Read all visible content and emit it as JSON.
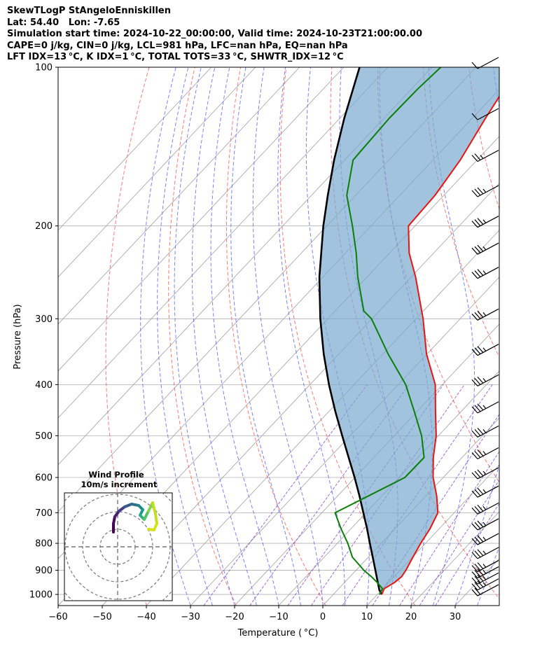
{
  "title_lines": [
    "SkewTLogP StAngeloEnniskillen",
    "Lat: 54.40   Lon: -7.65",
    "Simulation start time: 2024-10-22_00:00:00, Valid time: 2024-10-23T21:00:00.00",
    "CAPE=0 j/kg, CIN=0 j/kg, LCL=981 hPa, LFC=nan hPa, EQ=nan hPa",
    "LFT IDX=13 °C, K IDX=1 °C, TOTAL TOTS=33 °C, SHWTR_IDX=12 °C"
  ],
  "colors": {
    "temperature": "#e8140f",
    "dewpoint": "#0a7f0a",
    "parcel": "#000000",
    "cape_fill": "#7aa9cf",
    "dry_adiabat": "#f26464",
    "moist_adiabat": "#5a64f0",
    "mixing_ratio": "#8c46c8",
    "isotherm": "#a0a0a0"
  },
  "chart_data": {
    "type": "line",
    "subtype": "skew-t log-p",
    "xlabel": "Temperature ( °C)",
    "ylabel": "Pressure (hPa)",
    "xlim": [
      -60,
      40
    ],
    "ylim": [
      1050,
      100
    ],
    "y_scale": "log",
    "x_ticks": [
      -60,
      -50,
      -40,
      -30,
      -20,
      -10,
      0,
      10,
      20,
      30
    ],
    "x_tick_labels": [
      "−60",
      "−50",
      "−40",
      "−30",
      "−20",
      "−10",
      "0",
      "10",
      "20",
      "30"
    ],
    "y_ticks": [
      1000,
      900,
      800,
      700,
      600,
      500,
      400,
      300,
      200,
      100
    ],
    "y_tick_labels": [
      "1000",
      "900",
      "800",
      "700",
      "600",
      "500",
      "400",
      "300",
      "200",
      "100"
    ],
    "grid": true,
    "series": [
      {
        "role": "temperature",
        "pressure": [
          1000,
          975,
          950,
          925,
          900,
          850,
          800,
          750,
          700,
          650,
          600,
          550,
          500,
          450,
          400,
          350,
          300,
          250,
          225,
          200,
          175,
          150,
          125,
          110,
          100
        ],
        "temperature": [
          11.0,
          10.3,
          11.3,
          11.7,
          11.3,
          10.1,
          8.9,
          7.9,
          6.3,
          2.4,
          -2.3,
          -6.5,
          -10.5,
          -15.8,
          -21.6,
          -30.1,
          -38.4,
          -49.0,
          -55.6,
          -61.5,
          -62.0,
          -63.8,
          -67.0,
          -69.0,
          -69.0
        ]
      },
      {
        "role": "dewpoint",
        "pressure": [
          1000,
          975,
          950,
          925,
          900,
          850,
          800,
          750,
          700,
          650,
          600,
          550,
          500,
          450,
          400,
          350,
          300,
          290,
          250,
          225,
          200,
          175,
          150,
          125,
          110,
          100
        ],
        "dewpoint": [
          10.5,
          9.9,
          7.5,
          4.8,
          1.8,
          -3.6,
          -7.6,
          -12.3,
          -17.0,
          -13.0,
          -8.7,
          -8.6,
          -13.8,
          -20.6,
          -28.3,
          -38.8,
          -50.1,
          -53.5,
          -62.1,
          -67.6,
          -74.2,
          -82.0,
          -88.1,
          -88.8,
          -88.6,
          -88.0
        ]
      },
      {
        "role": "parcel",
        "pressure": [
          1000,
          981,
          950,
          900,
          850,
          800,
          750,
          700,
          650,
          600,
          550,
          500,
          450,
          400,
          350,
          300,
          250,
          200,
          175,
          150,
          125,
          100
        ],
        "temperature": [
          11.0,
          9.5,
          7.6,
          4.4,
          1.0,
          -2.6,
          -6.4,
          -10.6,
          -15.1,
          -20.1,
          -25.7,
          -31.8,
          -38.5,
          -45.7,
          -53.4,
          -61.7,
          -70.8,
          -80.8,
          -86.3,
          -92.4,
          -99.0,
          -106.4
        ]
      }
    ],
    "wind_barb_column": {
      "pressure": [
        1000,
        975,
        950,
        925,
        900,
        850,
        800,
        750,
        700,
        650,
        600,
        550,
        500,
        450,
        400,
        350,
        300,
        250,
        225,
        200,
        175,
        150,
        125,
        100
      ],
      "speed_kt": [
        20,
        25,
        25,
        25,
        25,
        25,
        25,
        25,
        25,
        25,
        25,
        25,
        25,
        25,
        25,
        25,
        25,
        25,
        25,
        25,
        25,
        15,
        10,
        10
      ]
    },
    "inset": {
      "title_lines": [
        "Wind Profile",
        "10m/s increment"
      ]
    }
  }
}
